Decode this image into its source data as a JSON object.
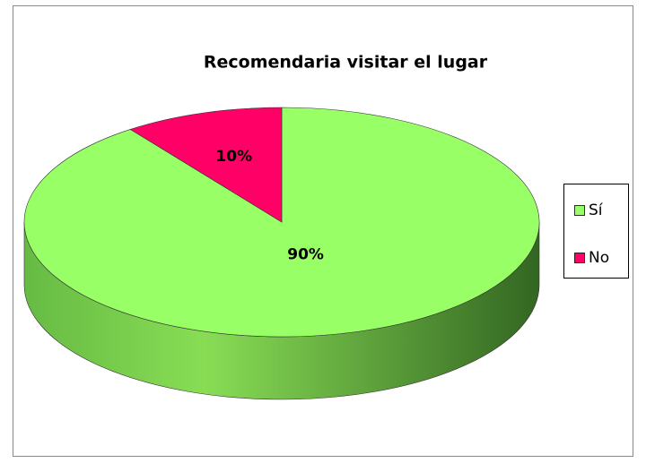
{
  "chart_data": {
    "type": "pie3d",
    "title": "Recomendaria visitar el lugar",
    "categories": [
      "Sí",
      "No"
    ],
    "values": [
      90,
      10
    ],
    "value_labels": [
      "90%",
      "10%"
    ],
    "colors": [
      "#99ff66",
      "#ff0066"
    ],
    "legend": "right"
  }
}
